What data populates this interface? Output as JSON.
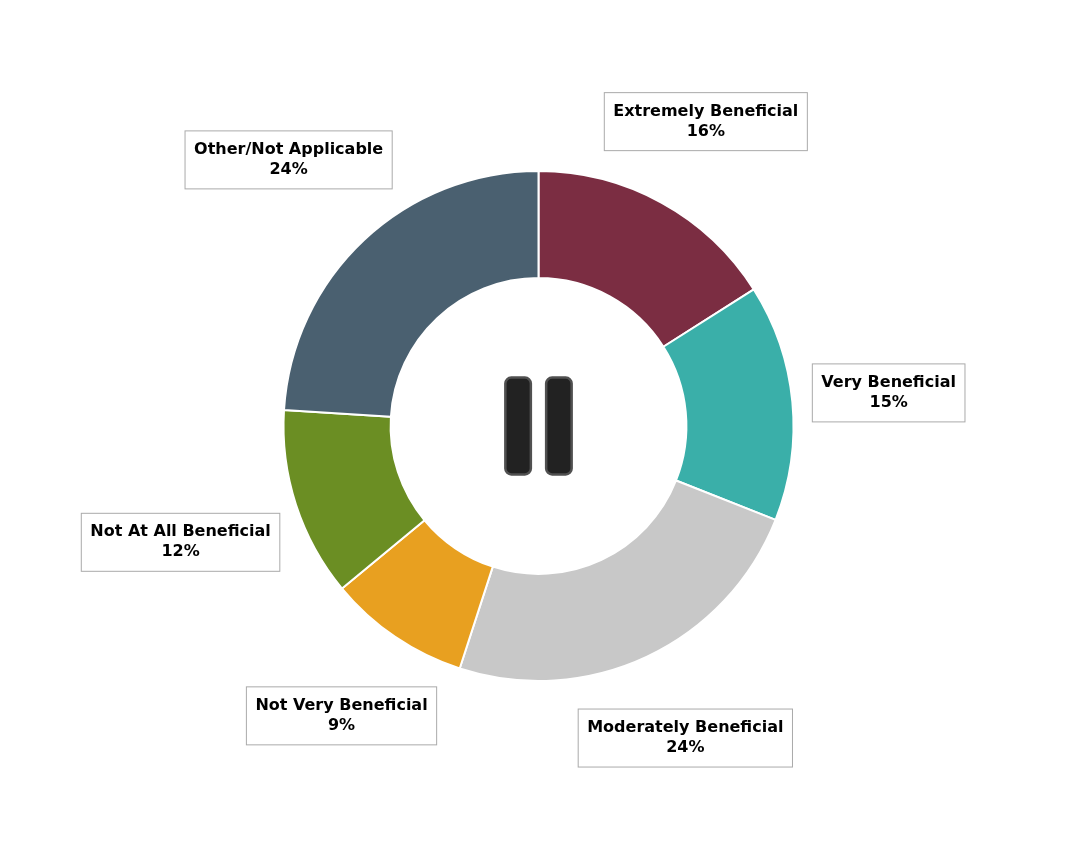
{
  "chart_data": {
    "type": "doughnut",
    "categories": [
      "Extremely Beneficial",
      "Very Beneficial",
      "Moderately Beneficial",
      "Not Very Beneficial",
      "Not At All Beneficial",
      "Other/Not Applicable"
    ],
    "values": [
      16,
      15,
      24,
      9,
      12,
      24
    ],
    "value_labels": [
      "16%",
      "15%",
      "24%",
      "9%",
      "12%",
      "24%"
    ],
    "colors": [
      "#7B2D42",
      "#3AAFA9",
      "#C8C8C8",
      "#E8A020",
      "#6B8E23",
      "#4A6070"
    ],
    "data_labels": true
  }
}
